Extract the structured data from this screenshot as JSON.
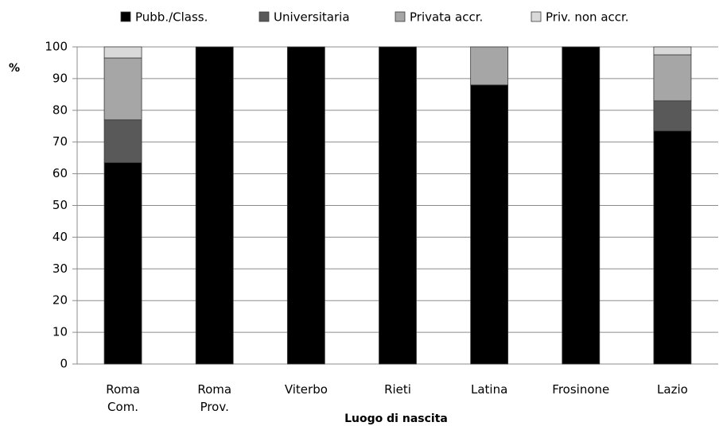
{
  "chart_data": {
    "type": "stacked_bar",
    "y_label": "%",
    "x_label": "Luogo di nascita",
    "categories": [
      "Roma Com.",
      "Roma Prov.",
      "Viterbo",
      "Rieti",
      "Latina",
      "Frosinone",
      "Lazio"
    ],
    "series": [
      {
        "name": "Pubb./Class.",
        "color": "#000000",
        "values": [
          63.5,
          100,
          100,
          100,
          88,
          100,
          73.5
        ]
      },
      {
        "name": "Universitaria",
        "color": "#595959",
        "values": [
          13.5,
          0,
          0,
          0,
          0,
          0,
          9.5
        ]
      },
      {
        "name": "Privata accr.",
        "color": "#a6a6a6",
        "values": [
          19.5,
          0,
          0,
          0,
          12,
          0,
          14.5
        ]
      },
      {
        "name": "Priv. non accr.",
        "color": "#d9d9d9",
        "values": [
          3.5,
          0,
          0,
          0,
          0,
          0,
          2.5
        ]
      }
    ],
    "ylim": [
      0,
      100
    ],
    "yticks": [
      0,
      10,
      20,
      30,
      40,
      50,
      60,
      70,
      80,
      90,
      100
    ],
    "grid": true,
    "legend": "top"
  }
}
